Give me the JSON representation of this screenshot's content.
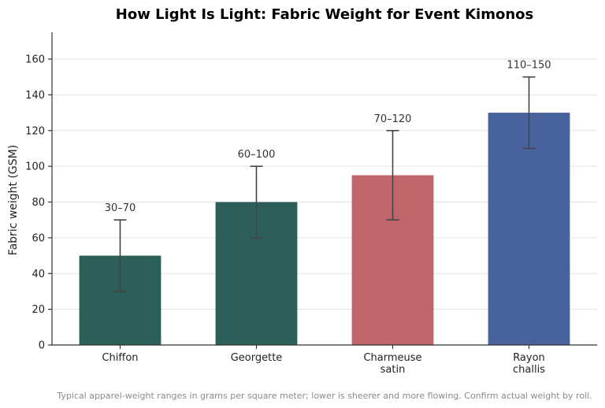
{
  "chart_data": {
    "type": "bar",
    "title": "How Light Is Light: Fabric Weight for Event Kimonos",
    "ylabel": "Fabric weight (GSM)",
    "xlabel": "",
    "ylim": [
      0,
      175
    ],
    "yticks": [
      0,
      20,
      40,
      60,
      80,
      100,
      120,
      140,
      160
    ],
    "grid": "y",
    "categories": [
      [
        "Chiffon"
      ],
      [
        "Georgette"
      ],
      [
        "Charmeuse",
        "satin"
      ],
      [
        "Rayon",
        "challis"
      ]
    ],
    "values": [
      50,
      80,
      95,
      130
    ],
    "error_low": [
      30,
      60,
      70,
      110
    ],
    "error_high": [
      70,
      100,
      120,
      150
    ],
    "range_labels": [
      "30–70",
      "60–100",
      "70–120",
      "110–150"
    ],
    "colors": [
      "#2d5f5a",
      "#2d5f5a",
      "#c0666b",
      "#48639b"
    ],
    "caption": "Typical apparel-weight ranges in grams per square meter; lower is sheerer and more flowing. Confirm actual weight by roll."
  }
}
